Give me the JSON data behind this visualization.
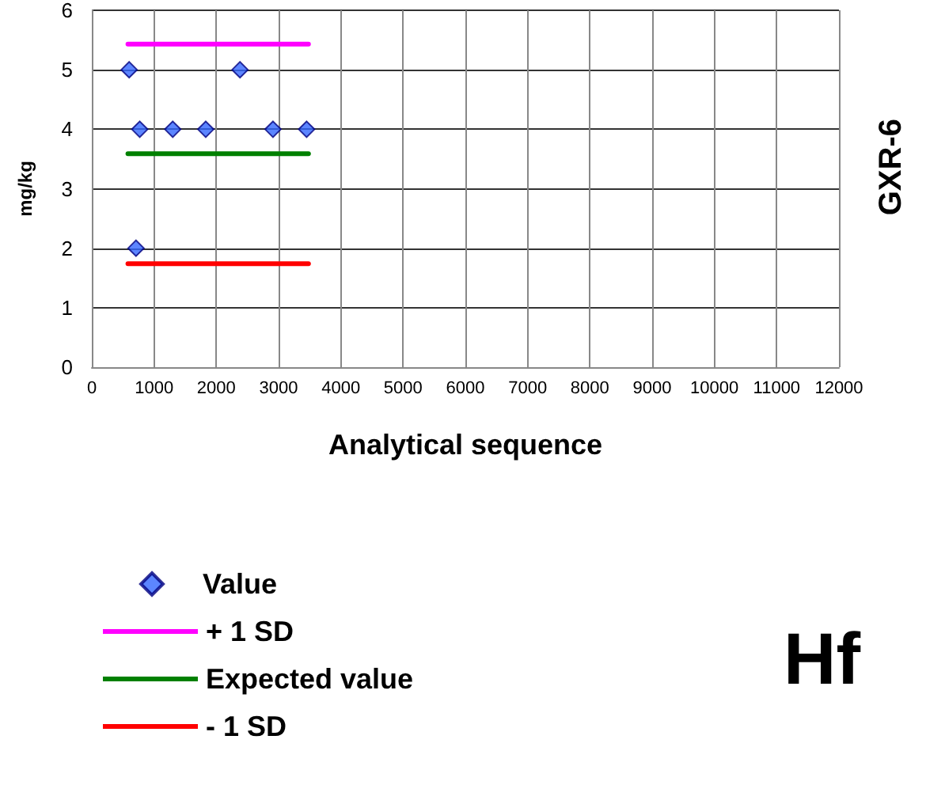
{
  "chart_data": {
    "type": "scatter",
    "xlabel": "Analytical sequence",
    "ylabel": "mg/kg",
    "annotations": [
      "GXR-6",
      "Hf"
    ],
    "series": [
      {
        "name": "Value",
        "marker": "diamond",
        "color": "#3366ff",
        "x": [
          600,
          710,
          770,
          1300,
          1830,
          2380,
          2910,
          3450
        ],
        "values": [
          5,
          2,
          4,
          4,
          4,
          5,
          4,
          4
        ]
      },
      {
        "name": "+ 1 SD",
        "type": "line",
        "marker": "none",
        "color": "#ff00ff",
        "x": [
          580,
          3480
        ],
        "values": [
          5.43,
          5.43
        ]
      },
      {
        "name": "Expected value",
        "type": "line",
        "marker": "none",
        "color": "#008000",
        "x": [
          580,
          3480
        ],
        "values": [
          3.59,
          3.59
        ]
      },
      {
        "name": "- 1 SD",
        "type": "line",
        "marker": "none",
        "color": "#ff0000",
        "x": [
          580,
          3480
        ],
        "values": [
          1.74,
          1.74
        ]
      }
    ],
    "xlim": [
      0,
      12000
    ],
    "xticks": [
      0,
      1000,
      2000,
      3000,
      4000,
      5000,
      6000,
      7000,
      8000,
      9000,
      10000,
      11000,
      12000
    ],
    "ylim": [
      0,
      6
    ],
    "yticks": [
      0,
      1,
      2,
      3,
      4,
      5,
      6
    ],
    "grid": true,
    "legend": "bottom",
    "line_style": "solid"
  }
}
